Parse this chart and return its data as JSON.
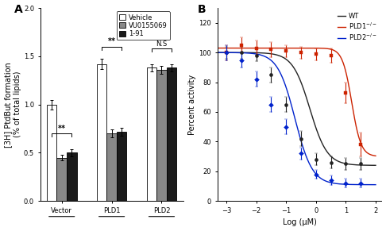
{
  "panel_A": {
    "groups": [
      "Vector",
      "PLD1",
      "PLD2"
    ],
    "conditions": [
      "Vehicle",
      "VU0155069",
      "1-91"
    ],
    "bar_colors": [
      "white",
      "#888888",
      "#1a1a1a"
    ],
    "bar_edgecolors": [
      "black",
      "black",
      "black"
    ],
    "values": [
      [
        1.0,
        0.45,
        0.5
      ],
      [
        1.42,
        0.7,
        0.72
      ],
      [
        1.38,
        1.36,
        1.38
      ]
    ],
    "errors": [
      [
        0.05,
        0.03,
        0.04
      ],
      [
        0.05,
        0.04,
        0.04
      ],
      [
        0.04,
        0.04,
        0.04
      ]
    ],
    "ylabel": "[3H] PtdBut formation\n(% of total lipids)",
    "ylim": [
      0,
      2.0
    ],
    "yticks": [
      0.0,
      0.5,
      1.0,
      1.5,
      2.0
    ]
  },
  "panel_B": {
    "xlabel": "Log (μM)",
    "ylabel": "Percent activity",
    "ylim": [
      0,
      130
    ],
    "yticks": [
      0,
      20,
      40,
      60,
      80,
      100,
      120
    ],
    "xlim": [
      -3.3,
      2.2
    ],
    "xticks": [
      -3,
      -2,
      -1,
      0,
      1,
      2
    ],
    "series": [
      {
        "label": "WT",
        "color": "#222222",
        "marker": "o",
        "x": [
          -3,
          -2.5,
          -2,
          -1.5,
          -1,
          -0.5,
          0,
          0.5,
          1,
          1.5
        ],
        "y": [
          100,
          100,
          98,
          85,
          65,
          42,
          28,
          26,
          25,
          25
        ],
        "yerr": [
          4,
          4,
          4,
          5,
          5,
          5,
          4,
          4,
          4,
          4
        ],
        "ec50_log": -0.2,
        "hill": 1.5,
        "bottom": 24,
        "top": 100
      },
      {
        "label": "PLD1-/-",
        "color": "#cc2200",
        "marker": "s",
        "x": [
          -3,
          -2.5,
          -2,
          -1.5,
          -1,
          -0.5,
          0,
          0.5,
          1,
          1.5
        ],
        "y": [
          100,
          105,
          103,
          102,
          101,
          100,
          99,
          98,
          73,
          38
        ],
        "yerr": [
          5,
          5,
          5,
          5,
          4,
          4,
          4,
          5,
          7,
          8
        ],
        "ec50_log": 1.2,
        "hill": 2.8,
        "bottom": 30,
        "top": 103
      },
      {
        "label": "PLD2-/-",
        "color": "#0022cc",
        "marker": "D",
        "x": [
          -3,
          -2.5,
          -2,
          -1.5,
          -1,
          -0.5,
          0,
          0.5,
          1,
          1.5
        ],
        "y": [
          100,
          95,
          82,
          65,
          50,
          32,
          18,
          14,
          12,
          12
        ],
        "yerr": [
          5,
          5,
          5,
          5,
          5,
          4,
          3,
          3,
          3,
          3
        ],
        "ec50_log": -0.7,
        "hill": 1.5,
        "bottom": 11,
        "top": 100
      }
    ]
  },
  "bg_color": "white",
  "label_fontsize": 7,
  "tick_fontsize": 6,
  "legend_fontsize": 6
}
